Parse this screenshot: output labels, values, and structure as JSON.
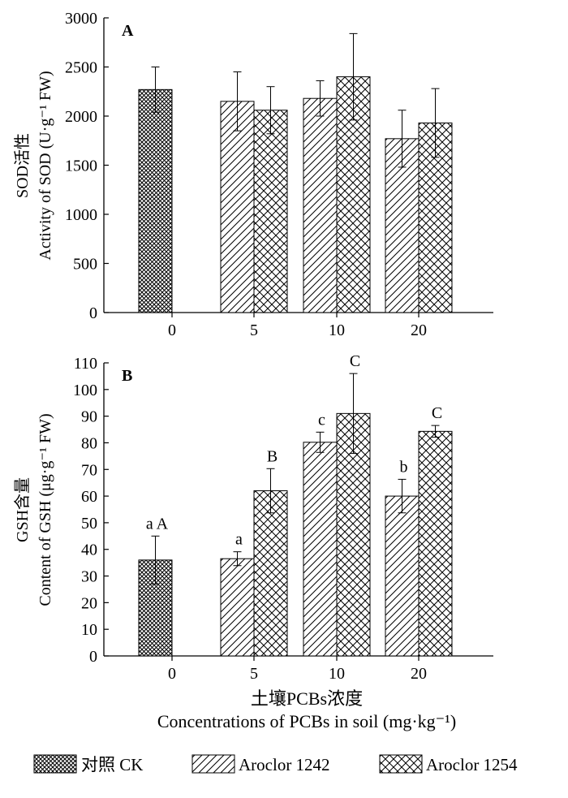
{
  "legend": {
    "items": [
      {
        "label": "对照 CK",
        "pattern": "crosshatch-fine"
      },
      {
        "label": "Aroclor 1242",
        "pattern": "diagonal"
      },
      {
        "label": "Aroclor 1254",
        "pattern": "crosshatch"
      }
    ]
  },
  "x_axis_title": {
    "line1": "土壤PCBs浓度",
    "line2": "Concentrations of PCBs in soil (mg·kg⁻¹)"
  },
  "chart_data": [
    {
      "type": "bar",
      "panel": "A",
      "ylabel_line1": "SOD活性",
      "ylabel_line2": "Activity of SOD (U·g⁻¹ FW)",
      "categories": [
        "0",
        "5",
        "10",
        "20"
      ],
      "ylim": [
        0,
        3000
      ],
      "yticks": [
        0,
        500,
        1000,
        1500,
        2000,
        2500,
        3000
      ],
      "grid": false,
      "series": [
        {
          "name": "对照 CK",
          "values": [
            2270,
            null,
            null,
            null
          ],
          "errors": [
            230,
            null,
            null,
            null
          ],
          "labels": [
            "",
            "",
            "",
            ""
          ]
        },
        {
          "name": "Aroclor 1242",
          "values": [
            null,
            2150,
            2180,
            1770
          ],
          "errors": [
            null,
            300,
            180,
            290
          ],
          "labels": [
            "",
            "",
            "",
            ""
          ]
        },
        {
          "name": "Aroclor 1254",
          "values": [
            null,
            2060,
            2400,
            1930
          ],
          "errors": [
            null,
            240,
            440,
            350
          ],
          "labels": [
            "",
            "",
            "",
            ""
          ]
        }
      ]
    },
    {
      "type": "bar",
      "panel": "B",
      "ylabel_line1": "GSH含量",
      "ylabel_line2": "Content of GSH (μg·g⁻¹ FW)",
      "categories": [
        "0",
        "5",
        "10",
        "20"
      ],
      "ylim": [
        0,
        110
      ],
      "yticks": [
        0,
        10,
        20,
        30,
        40,
        50,
        60,
        70,
        80,
        90,
        100,
        110
      ],
      "grid": false,
      "series": [
        {
          "name": "对照 CK",
          "values": [
            36,
            null,
            null,
            null
          ],
          "errors": [
            9,
            null,
            null,
            null
          ],
          "labels": [
            "a A",
            "",
            "",
            ""
          ]
        },
        {
          "name": "Aroclor 1242",
          "values": [
            null,
            36.5,
            80.2,
            60
          ],
          "errors": [
            null,
            2.6,
            3.8,
            6.3
          ],
          "labels": [
            "",
            "a",
            "c",
            "b"
          ]
        },
        {
          "name": "Aroclor 1254",
          "values": [
            null,
            62,
            91,
            84.3
          ],
          "errors": [
            null,
            8.3,
            15,
            2.2
          ],
          "labels": [
            "",
            "B",
            "C",
            "C"
          ]
        }
      ]
    }
  ]
}
